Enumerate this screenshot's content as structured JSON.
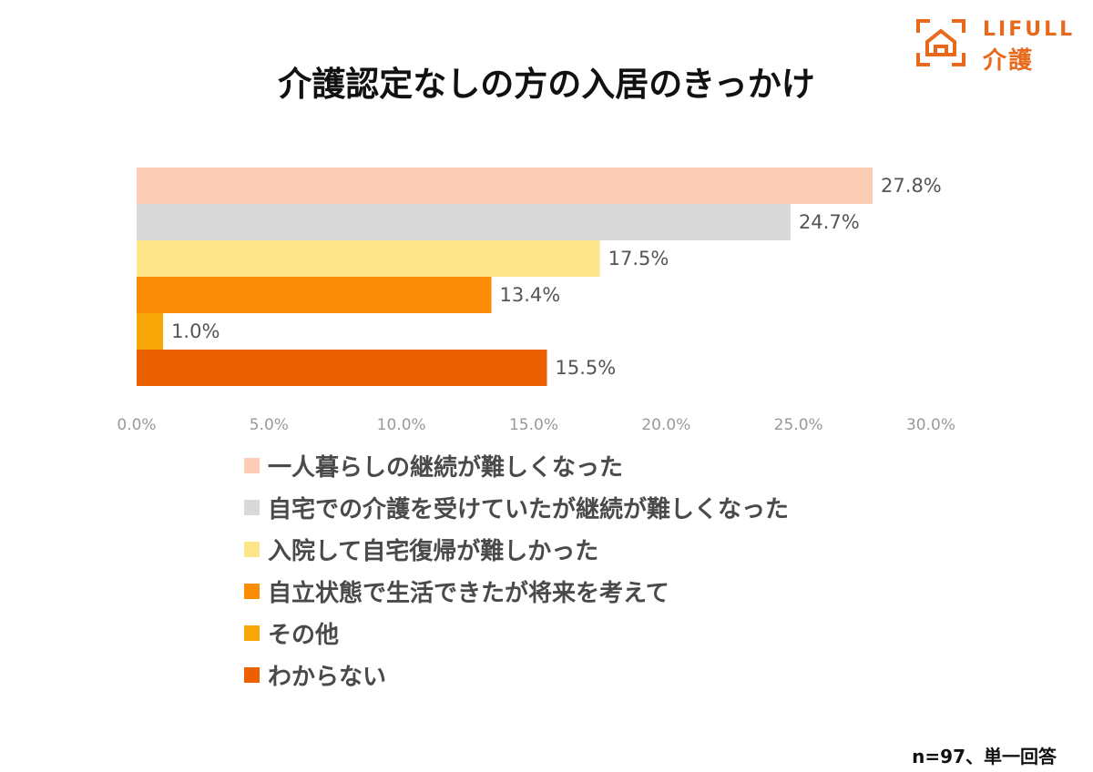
{
  "brand": {
    "name_en": "LIFULL",
    "name_ja": "介護",
    "color": "#e8681c"
  },
  "chart_data": {
    "type": "bar",
    "orientation": "horizontal",
    "title": "介護認定なしの方の入居のきっかけ",
    "categories": [
      "一人暮らしの継続が難しくなった",
      "自宅での介護を受けていたが継続が難しくなった",
      "入院して自宅復帰が難しかった",
      "自立状態で生活できたが将来を考えて",
      "その他",
      "わからない"
    ],
    "values": [
      27.8,
      24.7,
      17.5,
      13.4,
      1.0,
      15.5
    ],
    "value_labels": [
      "27.8%",
      "24.7%",
      "17.5%",
      "13.4%",
      "1.0%",
      "15.5%"
    ],
    "colors": [
      "#fdcdb6",
      "#d9d9d9",
      "#fde58a",
      "#fb8c06",
      "#f7a707",
      "#ec6000"
    ],
    "xlim": [
      0,
      30
    ],
    "ticks": [
      0,
      5,
      10,
      15,
      20,
      25,
      30
    ],
    "tick_labels": [
      "0.0%",
      "5.0%",
      "10.0%",
      "15.0%",
      "20.0%",
      "25.0%",
      "30.0%"
    ],
    "grid": false,
    "legend_position": "bottom",
    "xlabel": "",
    "ylabel": ""
  },
  "footnote": "n=97、単一回答"
}
